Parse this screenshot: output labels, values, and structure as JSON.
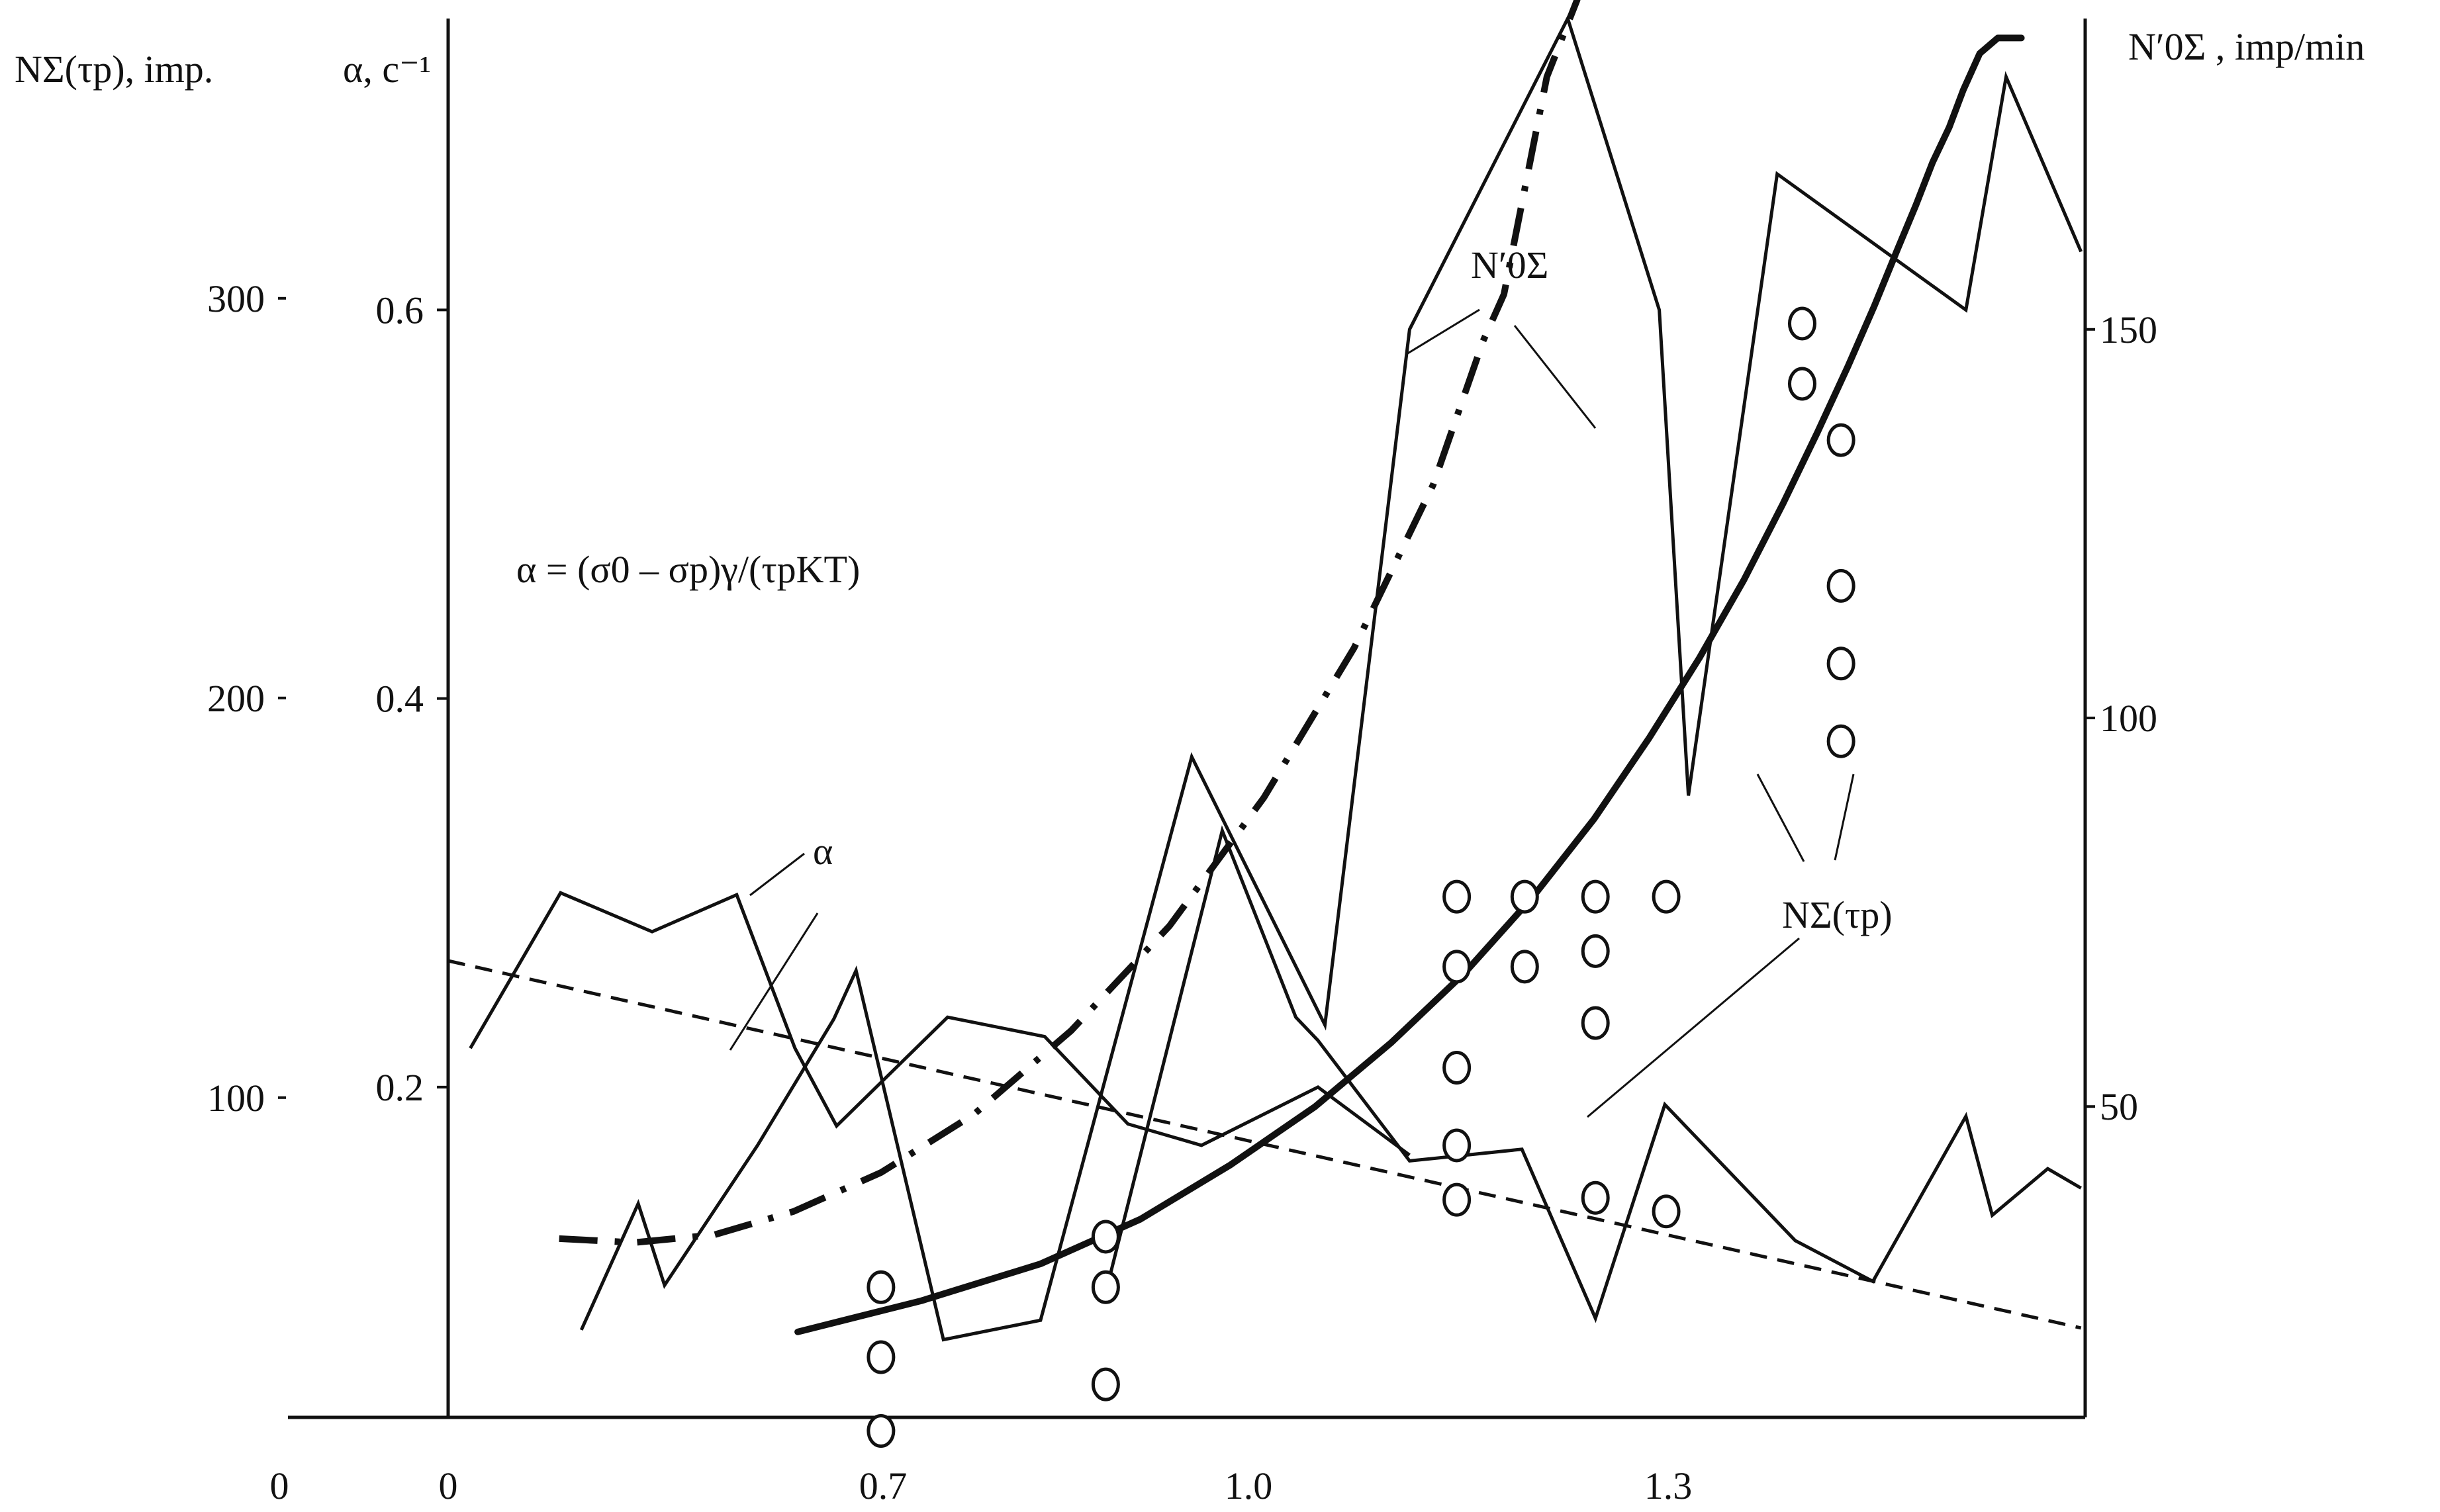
{
  "chart_data": {
    "type": "line",
    "axes": {
      "x": {
        "ticks_outer": [
          "0"
        ],
        "ticks": [
          "0",
          "0.7",
          "1.0",
          "1.3"
        ],
        "range": [
          0,
          1.18
        ]
      },
      "y_left_outer": {
        "title": "NΣ(τp), imp.",
        "ticks": [
          "100",
          "200",
          "300"
        ],
        "range": [
          20,
          370
        ]
      },
      "y_left": {
        "title": "α, c⁻¹",
        "ticks": [
          "0.2",
          "0.4",
          "0.6"
        ],
        "range": [
          0.03,
          0.75
        ]
      },
      "y_right": {
        "title": "N′0Σ , imp/min",
        "ticks": [
          "50",
          "100",
          "150"
        ],
        "range": [
          10,
          190
        ]
      }
    },
    "formula": "α = (σ0 – σp)γ/(τpKT)",
    "annotations": {
      "alpha": "α",
      "n0sigma": "N′0Σ",
      "nsigma": "NΣ(τp)"
    },
    "series": [
      {
        "axis": "y_left",
        "style": "thin",
        "x": [
          0.016,
          0.081,
          0.147,
          0.208,
          0.25,
          0.28,
          0.36,
          0.43,
          0.49,
          0.543,
          0.627,
          0.693
        ],
        "y": [
          0.22,
          0.3,
          0.28,
          0.299,
          0.22,
          0.18,
          0.236,
          0.226,
          0.181,
          0.17,
          0.2,
          0.165
        ]
      },
      {
        "axis": "y_left",
        "style": "thin",
        "x": [
          0.096,
          0.137,
          0.156,
          0.223,
          0.278,
          0.294,
          0.357,
          0.427,
          0.536,
          0.632,
          0.693,
          0.807,
          0.873,
          0.894,
          0.958,
          1.094,
          1.123,
          1.177
        ],
        "y": [
          0.075,
          0.14,
          0.098,
          0.17,
          0.235,
          0.26,
          0.07,
          0.08,
          0.37,
          0.232,
          0.59,
          0.75,
          0.6,
          0.35,
          0.67,
          0.6,
          0.72,
          0.63
        ]
      },
      {
        "axis": "y_left",
        "style": "thin",
        "x": [
          0.476,
          0.558,
          0.611,
          0.627,
          0.693,
          0.774,
          0.827,
          0.877,
          0.971,
          1.027,
          1.094,
          1.113,
          1.153,
          1.177
        ],
        "y": [
          0.1,
          0.332,
          0.236,
          0.224,
          0.162,
          0.168,
          0.081,
          0.191,
          0.121,
          0.1,
          0.185,
          0.134,
          0.158,
          0.148
        ]
      },
      {
        "axis": "y_left",
        "style": "dashed",
        "x": [
          0.0,
          1.177
        ],
        "y": [
          0.265,
          0.076
        ]
      },
      {
        "axis": "y_left",
        "style": "dashdot",
        "x": [
          0.08,
          0.134,
          0.192,
          0.249,
          0.312,
          0.379,
          0.449,
          0.52,
          0.588,
          0.653,
          0.71,
          0.746,
          0.761,
          0.792,
          0.814
        ],
        "y": [
          0.122,
          0.12,
          0.124,
          0.136,
          0.156,
          0.186,
          0.229,
          0.283,
          0.349,
          0.426,
          0.51,
          0.584,
          0.608,
          0.72,
          0.76
        ]
      },
      {
        "axis": "y_left",
        "style": "thick",
        "x": [
          0.252,
          0.341,
          0.427,
          0.499,
          0.564,
          0.625,
          0.68,
          0.733,
          0.782,
          0.826,
          0.866,
          0.902,
          0.934,
          0.962,
          0.987,
          1.009,
          1.028,
          1.044,
          1.058,
          1.07,
          1.082,
          1.092,
          1.104,
          1.117,
          1.134
        ],
        "y": [
          0.074,
          0.09,
          0.109,
          0.132,
          0.16,
          0.19,
          0.223,
          0.259,
          0.298,
          0.338,
          0.38,
          0.421,
          0.461,
          0.5,
          0.537,
          0.571,
          0.602,
          0.63,
          0.654,
          0.676,
          0.694,
          0.713,
          0.732,
          0.74,
          0.74
        ]
      }
    ],
    "markers": {
      "axis": "y_left",
      "x": [
        0.312,
        0.312,
        0.312,
        0.474,
        0.474,
        0.474,
        0.727,
        0.727,
        0.727,
        0.727,
        0.727,
        0.776,
        0.776,
        0.827,
        0.827,
        0.827,
        0.827,
        0.878,
        0.878,
        0.976,
        0.976,
        1.004,
        1.004,
        1.004,
        1.004
      ],
      "y": [
        0.097,
        0.061,
        0.023,
        0.123,
        0.097,
        0.047,
        0.298,
        0.262,
        0.21,
        0.17,
        0.142,
        0.298,
        0.262,
        0.298,
        0.27,
        0.233,
        0.143,
        0.298,
        0.136,
        0.593,
        0.562,
        0.533,
        0.458,
        0.418,
        0.378
      ]
    }
  }
}
